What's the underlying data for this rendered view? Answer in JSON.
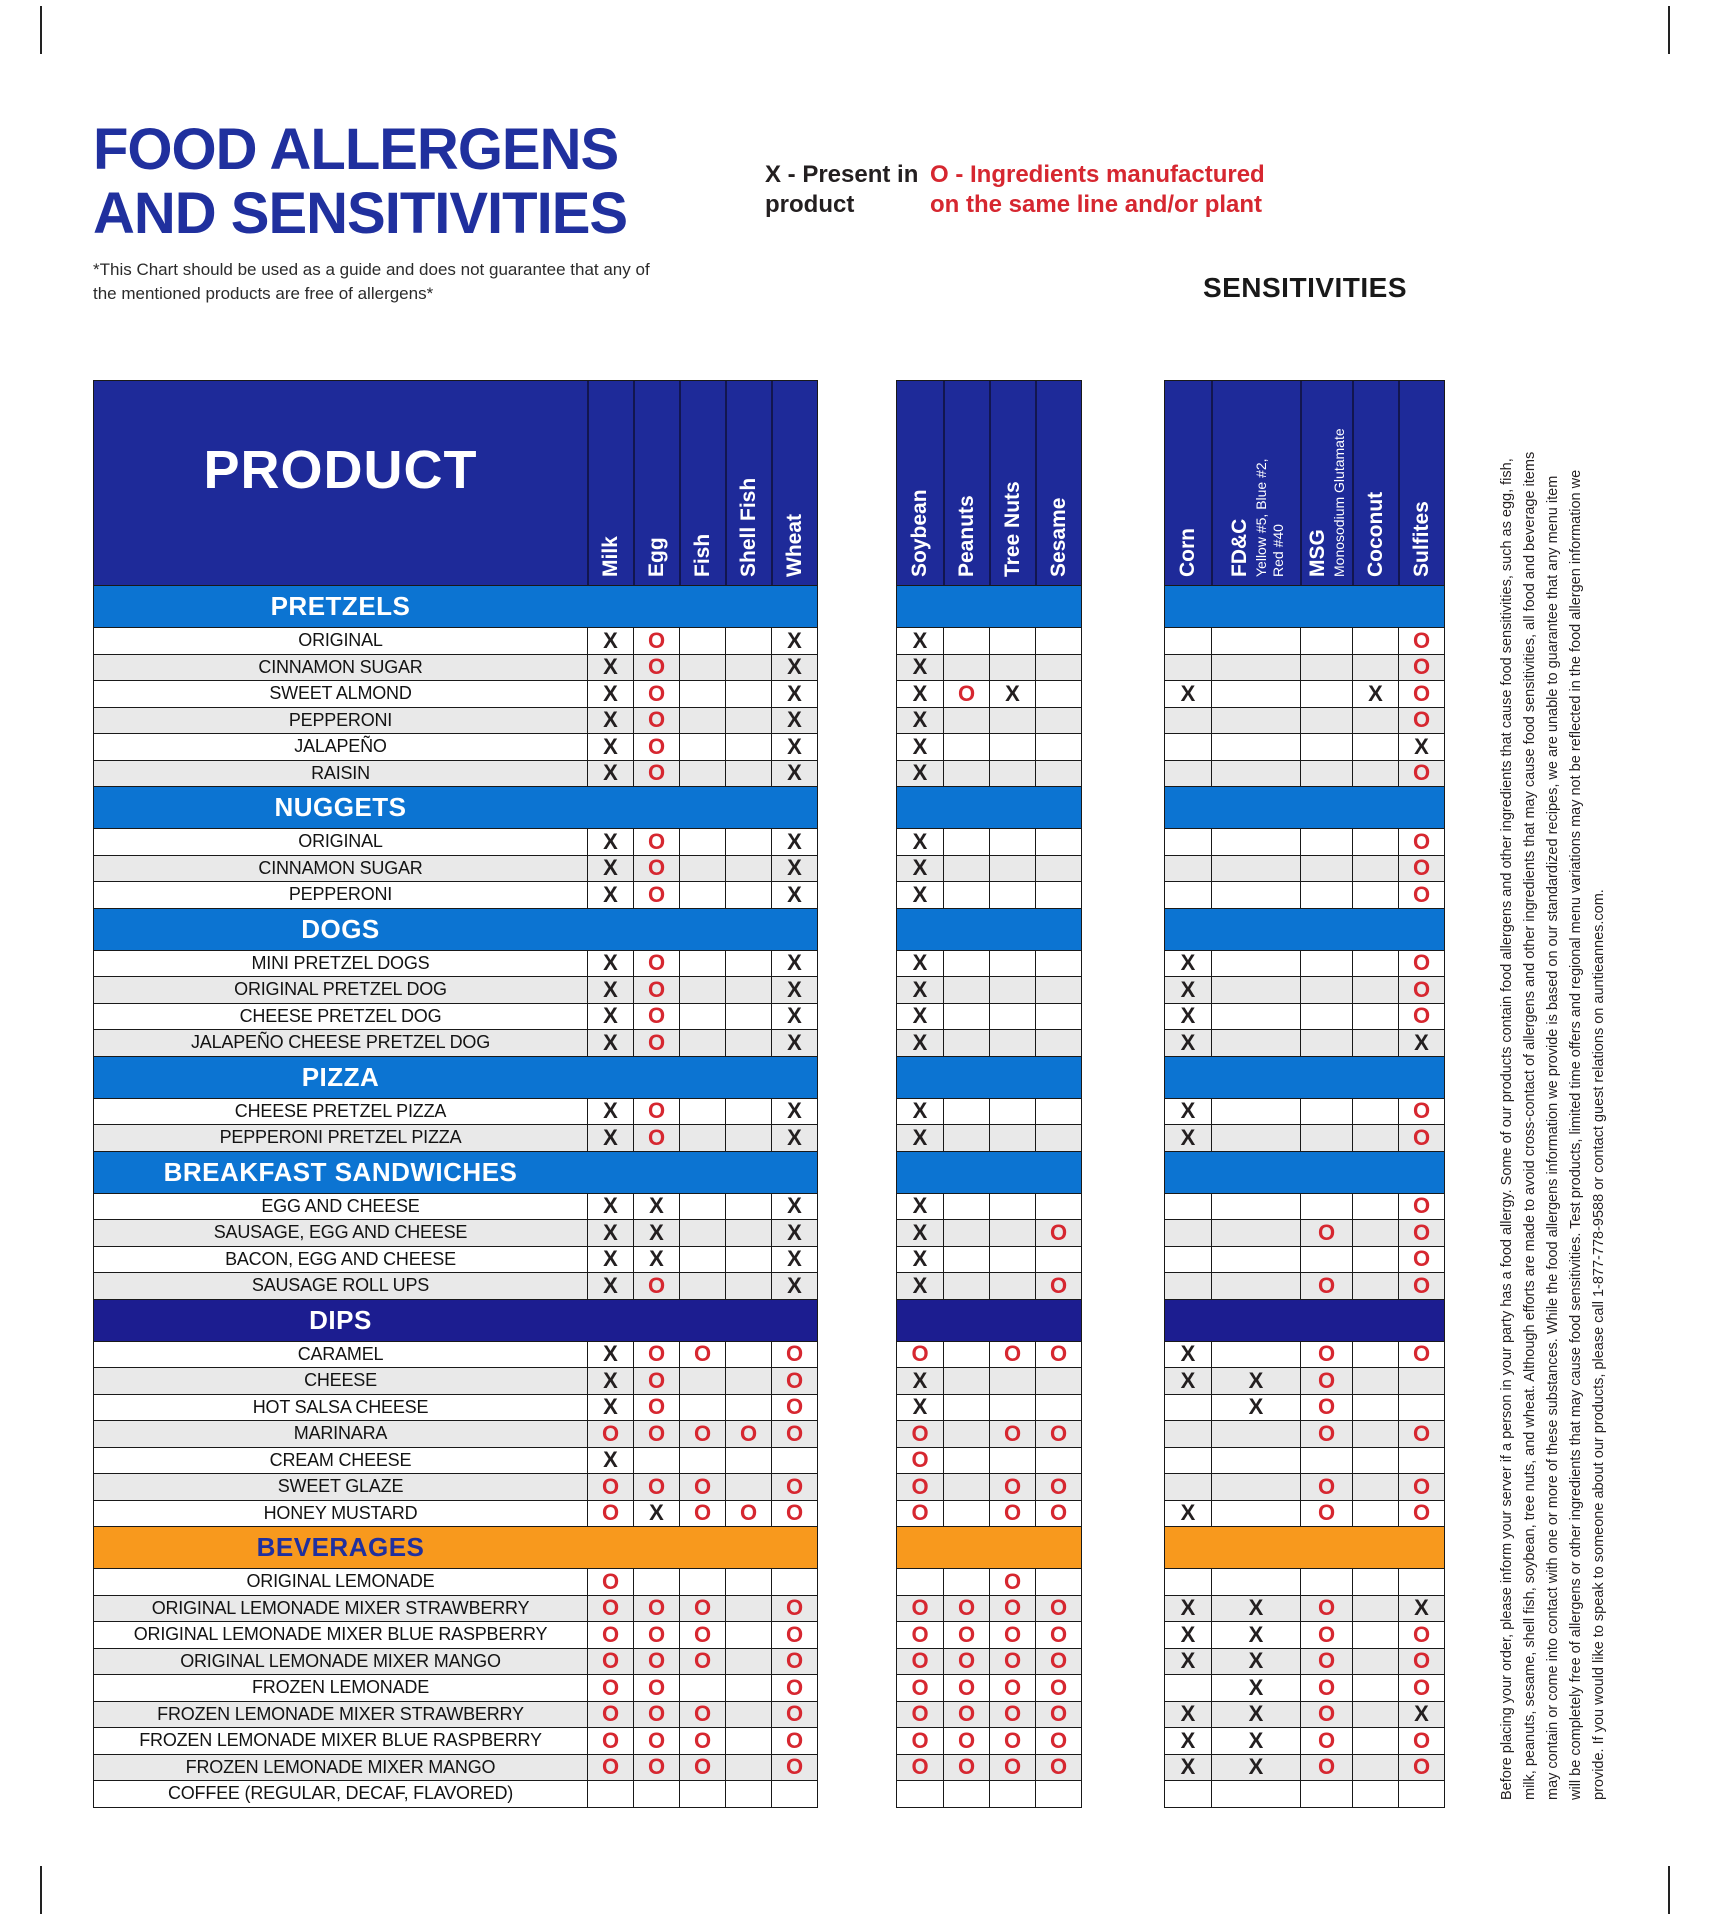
{
  "page": {
    "title_line1": "FOOD ALLERGENS",
    "title_line2": "AND SENSITIVITIES",
    "subtitle": "*This Chart should be used as a guide and does not guarantee that any of the mentioned products are free of allergens*"
  },
  "legend": {
    "present": "X - Present in product",
    "same_line": "O - Ingredients manufactured on the same line and/or plant"
  },
  "sensitivities_title": "SENSITIVITIES",
  "colors": {
    "brand_blue": "#20309e",
    "header_navy": "#1e2a99",
    "section_blue": "#0c74d2",
    "section_navy": "#1c1d90",
    "section_orange": "#f8991d",
    "mark_x_black": "#231f20",
    "mark_o_red": "#d62730",
    "alt_row_gray": "#e9e9e9"
  },
  "table": {
    "product_header": "PRODUCT",
    "allergens": [
      "Milk",
      "Egg",
      "Fish",
      "Shell Fish",
      "Wheat"
    ],
    "group2": [
      "Soybean",
      "Peanuts",
      "Tree Nuts",
      "Sesame"
    ],
    "sens": [
      {
        "name": "Corn",
        "sub": []
      },
      {
        "name": "FD&C",
        "sub": [
          "Yellow #5, Blue #2,",
          "Red #40"
        ]
      },
      {
        "name": "MSG",
        "sub": [
          "Monosodium Glutamate"
        ]
      },
      {
        "name": "Coconut",
        "sub": []
      },
      {
        "name": "Sulfites",
        "sub": []
      }
    ],
    "mark_columns": [
      "Milk",
      "Egg",
      "Fish",
      "Shell Fish",
      "Wheat",
      "Soybean",
      "Peanuts",
      "Tree Nuts",
      "Sesame",
      "Corn",
      "FD&C",
      "MSG",
      "Coconut",
      "Sulfites"
    ],
    "mark_legend": {
      "X": "Present in product",
      "O": "Ingredients manufactured on the same line and/or plant"
    },
    "sections": [
      {
        "label": "PRETZELS",
        "color": "blue",
        "rows": [
          {
            "name": "ORIGINAL",
            "marks": [
              "X",
              "O",
              "",
              "",
              "X",
              "X",
              "",
              "",
              "",
              "",
              "",
              "",
              "",
              "O"
            ]
          },
          {
            "name": "CINNAMON SUGAR",
            "marks": [
              "X",
              "O",
              "",
              "",
              "X",
              "X",
              "",
              "",
              "",
              "",
              "",
              "",
              "",
              "O"
            ]
          },
          {
            "name": "SWEET ALMOND",
            "marks": [
              "X",
              "O",
              "",
              "",
              "X",
              "X",
              "O",
              "X",
              "",
              "X",
              "",
              "",
              "X",
              "O"
            ]
          },
          {
            "name": "PEPPERONI",
            "marks": [
              "X",
              "O",
              "",
              "",
              "X",
              "X",
              "",
              "",
              "",
              "",
              "",
              "",
              "",
              "O"
            ]
          },
          {
            "name": "JALAPEÑO",
            "marks": [
              "X",
              "O",
              "",
              "",
              "X",
              "X",
              "",
              "",
              "",
              "",
              "",
              "",
              "",
              "X"
            ]
          },
          {
            "name": "RAISIN",
            "marks": [
              "X",
              "O",
              "",
              "",
              "X",
              "X",
              "",
              "",
              "",
              "",
              "",
              "",
              "",
              "O"
            ]
          }
        ]
      },
      {
        "label": "NUGGETS",
        "color": "blue",
        "rows": [
          {
            "name": "ORIGINAL",
            "marks": [
              "X",
              "O",
              "",
              "",
              "X",
              "X",
              "",
              "",
              "",
              "",
              "",
              "",
              "",
              "O"
            ]
          },
          {
            "name": "CINNAMON SUGAR",
            "marks": [
              "X",
              "O",
              "",
              "",
              "X",
              "X",
              "",
              "",
              "",
              "",
              "",
              "",
              "",
              "O"
            ]
          },
          {
            "name": "PEPPERONI",
            "marks": [
              "X",
              "O",
              "",
              "",
              "X",
              "X",
              "",
              "",
              "",
              "",
              "",
              "",
              "",
              "O"
            ]
          }
        ]
      },
      {
        "label": "DOGS",
        "color": "blue",
        "rows": [
          {
            "name": "MINI PRETZEL DOGS",
            "marks": [
              "X",
              "O",
              "",
              "",
              "X",
              "X",
              "",
              "",
              "",
              "X",
              "",
              "",
              "",
              "O"
            ]
          },
          {
            "name": "ORIGINAL PRETZEL DOG",
            "marks": [
              "X",
              "O",
              "",
              "",
              "X",
              "X",
              "",
              "",
              "",
              "X",
              "",
              "",
              "",
              "O"
            ]
          },
          {
            "name": "CHEESE PRETZEL DOG",
            "marks": [
              "X",
              "O",
              "",
              "",
              "X",
              "X",
              "",
              "",
              "",
              "X",
              "",
              "",
              "",
              "O"
            ]
          },
          {
            "name": "JALAPEÑO CHEESE PRETZEL DOG",
            "marks": [
              "X",
              "O",
              "",
              "",
              "X",
              "X",
              "",
              "",
              "",
              "X",
              "",
              "",
              "",
              "X"
            ]
          }
        ]
      },
      {
        "label": "PIZZA",
        "color": "blue",
        "rows": [
          {
            "name": "CHEESE PRETZEL PIZZA",
            "marks": [
              "X",
              "O",
              "",
              "",
              "X",
              "X",
              "",
              "",
              "",
              "X",
              "",
              "",
              "",
              "O"
            ]
          },
          {
            "name": "PEPPERONI PRETZEL PIZZA",
            "marks": [
              "X",
              "O",
              "",
              "",
              "X",
              "X",
              "",
              "",
              "",
              "X",
              "",
              "",
              "",
              "O"
            ]
          }
        ]
      },
      {
        "label": "BREAKFAST SANDWICHES",
        "color": "blue",
        "rows": [
          {
            "name": "EGG AND CHEESE",
            "marks": [
              "X",
              "X",
              "",
              "",
              "X",
              "X",
              "",
              "",
              "",
              "",
              "",
              "",
              "",
              "O"
            ]
          },
          {
            "name": "SAUSAGE, EGG AND CHEESE",
            "marks": [
              "X",
              "X",
              "",
              "",
              "X",
              "X",
              "",
              "",
              "O",
              "",
              "",
              "O",
              "",
              "O"
            ]
          },
          {
            "name": "BACON, EGG AND CHEESE",
            "marks": [
              "X",
              "X",
              "",
              "",
              "X",
              "X",
              "",
              "",
              "",
              "",
              "",
              "",
              "",
              "O"
            ]
          },
          {
            "name": "SAUSAGE ROLL UPS",
            "marks": [
              "X",
              "O",
              "",
              "",
              "X",
              "X",
              "",
              "",
              "O",
              "",
              "",
              "O",
              "",
              "O"
            ]
          }
        ]
      },
      {
        "label": "DIPS",
        "color": "navy",
        "rows": [
          {
            "name": "CARAMEL",
            "marks": [
              "X",
              "O",
              "O",
              "",
              "O",
              "O",
              "",
              "O",
              "O",
              "X",
              "",
              "O",
              "",
              "O"
            ]
          },
          {
            "name": "CHEESE",
            "marks": [
              "X",
              "O",
              "",
              "",
              "O",
              "X",
              "",
              "",
              "",
              "X",
              "X",
              "O",
              "",
              ""
            ]
          },
          {
            "name": "HOT SALSA CHEESE",
            "marks": [
              "X",
              "O",
              "",
              "",
              "O",
              "X",
              "",
              "",
              "",
              "",
              "X",
              "O",
              "",
              ""
            ]
          },
          {
            "name": "MARINARA",
            "marks": [
              "O",
              "O",
              "O",
              "O",
              "O",
              "O",
              "",
              "O",
              "O",
              "",
              "",
              "O",
              "",
              "O"
            ]
          },
          {
            "name": "CREAM CHEESE",
            "marks": [
              "X",
              "",
              "",
              "",
              "",
              "O",
              "",
              "",
              "",
              "",
              "",
              "",
              "",
              ""
            ]
          },
          {
            "name": "SWEET GLAZE",
            "marks": [
              "O",
              "O",
              "O",
              "",
              "O",
              "O",
              "",
              "O",
              "O",
              "",
              "",
              "O",
              "",
              "O"
            ]
          },
          {
            "name": "HONEY MUSTARD",
            "marks": [
              "O",
              "X",
              "O",
              "O",
              "O",
              "O",
              "",
              "O",
              "O",
              "X",
              "",
              "O",
              "",
              "O"
            ]
          }
        ]
      },
      {
        "label": "BEVERAGES",
        "color": "orange",
        "rows": [
          {
            "name": "ORIGINAL LEMONADE",
            "marks": [
              "O",
              "",
              "",
              "",
              "",
              "",
              "",
              "O",
              "",
              "",
              "",
              "",
              "",
              ""
            ]
          },
          {
            "name": "ORIGINAL LEMONADE MIXER STRAWBERRY",
            "marks": [
              "O",
              "O",
              "O",
              "",
              "O",
              "O",
              "O",
              "O",
              "O",
              "X",
              "X",
              "O",
              "",
              "X"
            ]
          },
          {
            "name": "ORIGINAL LEMONADE MIXER BLUE RASPBERRY",
            "marks": [
              "O",
              "O",
              "O",
              "",
              "O",
              "O",
              "O",
              "O",
              "O",
              "X",
              "X",
              "O",
              "",
              "O"
            ]
          },
          {
            "name": "ORIGINAL LEMONADE MIXER MANGO",
            "marks": [
              "O",
              "O",
              "O",
              "",
              "O",
              "O",
              "O",
              "O",
              "O",
              "X",
              "X",
              "O",
              "",
              "O"
            ]
          },
          {
            "name": "FROZEN LEMONADE",
            "marks": [
              "O",
              "O",
              "",
              "",
              "O",
              "O",
              "O",
              "O",
              "O",
              "",
              "X",
              "O",
              "",
              "O"
            ]
          },
          {
            "name": "FROZEN LEMONADE MIXER STRAWBERRY",
            "marks": [
              "O",
              "O",
              "O",
              "",
              "O",
              "O",
              "O",
              "O",
              "O",
              "X",
              "X",
              "O",
              "",
              "X"
            ]
          },
          {
            "name": "FROZEN LEMONADE MIXER BLUE RASPBERRY",
            "marks": [
              "O",
              "O",
              "O",
              "",
              "O",
              "O",
              "O",
              "O",
              "O",
              "X",
              "X",
              "O",
              "",
              "O"
            ]
          },
          {
            "name": "FROZEN LEMONADE MIXER MANGO",
            "marks": [
              "O",
              "O",
              "O",
              "",
              "O",
              "O",
              "O",
              "O",
              "O",
              "X",
              "X",
              "O",
              "",
              "O"
            ]
          },
          {
            "name": "COFFEE (REGULAR, DECAF, FLAVORED)",
            "marks": [
              "",
              "",
              "",
              "",
              "",
              "",
              "",
              "",
              "",
              "",
              "",
              "",
              "",
              ""
            ]
          }
        ]
      }
    ]
  },
  "footer_lines": [
    "Before placing your order, please inform your server if a person in your party has a food allergy. Some of our products contain food allergens and other ingredients that cause food sensitivities, such as egg, fish,",
    "milk, peanuts, sesame, shell fish, soybean, tree nuts, and wheat. Although efforts are made to avoid cross-contact of allergens and other ingredients that may cause food sensitivities, all food and beverage items",
    "may contain or come into contact with one or more of these substances. While the food allergens information we provide is based on our standardized recipes, we are unable to guarantee that any menu item",
    "will be completely free of allergens or other ingredients that may cause food sensitivities. Test products, limited time offers and regional menu variations may not be reflected in the food allergen information we",
    "provide. If you would like to speak to someone about our products, please call 1-877-778-9588 or contact guest relations on auntieannes.com."
  ]
}
